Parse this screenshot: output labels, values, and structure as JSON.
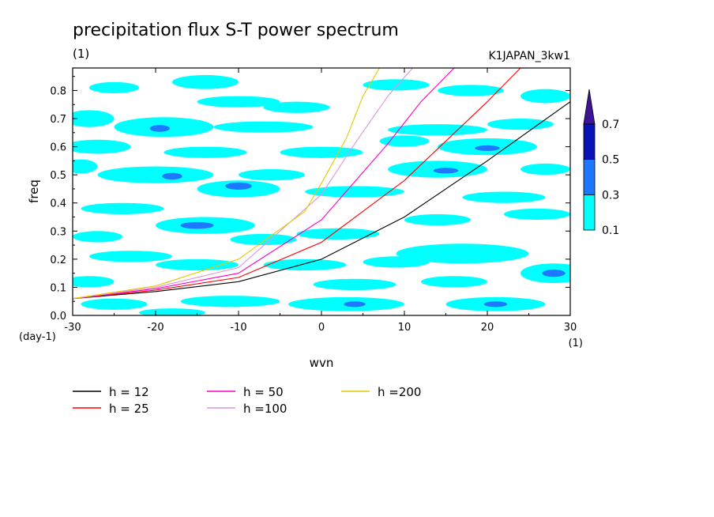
{
  "chart_data": {
    "type": "heatmap",
    "title": "precipitation flux S-T power spectrum",
    "subtitle": "(1)",
    "case_label": "K1JAPAN_3kw1",
    "xlabel": "wvn",
    "ylabel": "freq",
    "x_unit": "(1)",
    "y_unit": "(day-1)",
    "xlim": [
      -30,
      30
    ],
    "ylim": [
      0,
      0.88
    ],
    "x_ticks": [
      -30,
      -20,
      -10,
      0,
      10,
      20,
      30
    ],
    "y_ticks": [
      0.0,
      0.1,
      0.2,
      0.3,
      0.4,
      0.5,
      0.6,
      0.7,
      0.8
    ],
    "x_tick_labels": [
      "-30",
      "-20",
      "-10",
      "0",
      "10",
      "20",
      "30"
    ],
    "y_tick_labels": [
      "0.0",
      "0.1",
      "0.2",
      "0.3",
      "0.4",
      "0.5",
      "0.6",
      "0.7",
      "0.8"
    ],
    "grid": false,
    "colorbar": {
      "levels": [
        0.1,
        0.3,
        0.5,
        0.7
      ],
      "labels": [
        "0.1",
        "0.3",
        "0.5",
        "0.7"
      ],
      "colors": [
        "#00ffff",
        "#1e78ff",
        "#0a14b4",
        "#3c1496"
      ],
      "position": "right"
    },
    "contour_blobs": [
      {
        "x": -25,
        "y": 0.81,
        "rx": 3,
        "ry": 0.02,
        "level": 1
      },
      {
        "x": -14,
        "y": 0.83,
        "rx": 4,
        "ry": 0.025,
        "level": 1
      },
      {
        "x": -10,
        "y": 0.76,
        "rx": 5,
        "ry": 0.02,
        "level": 1
      },
      {
        "x": -3,
        "y": 0.74,
        "rx": 4,
        "ry": 0.02,
        "level": 1
      },
      {
        "x": 9,
        "y": 0.82,
        "rx": 4,
        "ry": 0.02,
        "level": 1
      },
      {
        "x": 18,
        "y": 0.8,
        "rx": 4,
        "ry": 0.02,
        "level": 1
      },
      {
        "x": 27,
        "y": 0.78,
        "rx": 3,
        "ry": 0.025,
        "level": 1
      },
      {
        "x": -28,
        "y": 0.7,
        "rx": 3,
        "ry": 0.03,
        "level": 1
      },
      {
        "x": -19,
        "y": 0.67,
        "rx": 6,
        "ry": 0.035,
        "level": 1
      },
      {
        "x": -19.5,
        "y": 0.665,
        "rx": 1.2,
        "ry": 0.012,
        "level": 2
      },
      {
        "x": -7,
        "y": 0.67,
        "rx": 6,
        "ry": 0.02,
        "level": 1
      },
      {
        "x": 14,
        "y": 0.66,
        "rx": 6,
        "ry": 0.02,
        "level": 1
      },
      {
        "x": 24,
        "y": 0.68,
        "rx": 4,
        "ry": 0.02,
        "level": 1
      },
      {
        "x": -27,
        "y": 0.6,
        "rx": 4,
        "ry": 0.025,
        "level": 1
      },
      {
        "x": -14,
        "y": 0.58,
        "rx": 5,
        "ry": 0.02,
        "level": 1
      },
      {
        "x": 0,
        "y": 0.58,
        "rx": 5,
        "ry": 0.02,
        "level": 1
      },
      {
        "x": 10,
        "y": 0.62,
        "rx": 3,
        "ry": 0.02,
        "level": 1
      },
      {
        "x": 20,
        "y": 0.6,
        "rx": 6,
        "ry": 0.03,
        "level": 1
      },
      {
        "x": 20,
        "y": 0.595,
        "rx": 1.5,
        "ry": 0.01,
        "level": 2
      },
      {
        "x": -29,
        "y": 0.53,
        "rx": 2,
        "ry": 0.025,
        "level": 1
      },
      {
        "x": -20,
        "y": 0.5,
        "rx": 7,
        "ry": 0.03,
        "level": 1
      },
      {
        "x": -18,
        "y": 0.495,
        "rx": 1.2,
        "ry": 0.012,
        "level": 2
      },
      {
        "x": -6,
        "y": 0.5,
        "rx": 4,
        "ry": 0.02,
        "level": 1
      },
      {
        "x": 14,
        "y": 0.52,
        "rx": 6,
        "ry": 0.03,
        "level": 1
      },
      {
        "x": 15,
        "y": 0.515,
        "rx": 1.5,
        "ry": 0.01,
        "level": 2
      },
      {
        "x": 27,
        "y": 0.52,
        "rx": 3,
        "ry": 0.02,
        "level": 1
      },
      {
        "x": -10,
        "y": 0.45,
        "rx": 5,
        "ry": 0.03,
        "level": 1
      },
      {
        "x": -10,
        "y": 0.46,
        "rx": 1.6,
        "ry": 0.013,
        "level": 2
      },
      {
        "x": 4,
        "y": 0.44,
        "rx": 6,
        "ry": 0.02,
        "level": 1
      },
      {
        "x": 22,
        "y": 0.42,
        "rx": 5,
        "ry": 0.02,
        "level": 1
      },
      {
        "x": -24,
        "y": 0.38,
        "rx": 5,
        "ry": 0.02,
        "level": 1
      },
      {
        "x": -14,
        "y": 0.32,
        "rx": 6,
        "ry": 0.03,
        "level": 1
      },
      {
        "x": -15,
        "y": 0.32,
        "rx": 2.0,
        "ry": 0.012,
        "level": 2
      },
      {
        "x": 14,
        "y": 0.34,
        "rx": 4,
        "ry": 0.02,
        "level": 1
      },
      {
        "x": 26,
        "y": 0.36,
        "rx": 4,
        "ry": 0.02,
        "level": 1
      },
      {
        "x": -27,
        "y": 0.28,
        "rx": 3,
        "ry": 0.02,
        "level": 1
      },
      {
        "x": -7,
        "y": 0.27,
        "rx": 4,
        "ry": 0.02,
        "level": 1
      },
      {
        "x": 2,
        "y": 0.29,
        "rx": 5,
        "ry": 0.02,
        "level": 1
      },
      {
        "x": 17,
        "y": 0.22,
        "rx": 8,
        "ry": 0.035,
        "level": 1
      },
      {
        "x": -23,
        "y": 0.21,
        "rx": 5,
        "ry": 0.02,
        "level": 1
      },
      {
        "x": -15,
        "y": 0.18,
        "rx": 5,
        "ry": 0.02,
        "level": 1
      },
      {
        "x": -2,
        "y": 0.18,
        "rx": 5,
        "ry": 0.02,
        "level": 1
      },
      {
        "x": 9,
        "y": 0.19,
        "rx": 4,
        "ry": 0.02,
        "level": 1
      },
      {
        "x": -28,
        "y": 0.12,
        "rx": 3,
        "ry": 0.02,
        "level": 1
      },
      {
        "x": 4,
        "y": 0.11,
        "rx": 5,
        "ry": 0.02,
        "level": 1
      },
      {
        "x": 28,
        "y": 0.15,
        "rx": 4,
        "ry": 0.035,
        "level": 1
      },
      {
        "x": 28,
        "y": 0.15,
        "rx": 1.4,
        "ry": 0.013,
        "level": 2
      },
      {
        "x": 16,
        "y": 0.12,
        "rx": 4,
        "ry": 0.02,
        "level": 1
      },
      {
        "x": -11,
        "y": 0.05,
        "rx": 6,
        "ry": 0.02,
        "level": 1
      },
      {
        "x": 3,
        "y": 0.04,
        "rx": 7,
        "ry": 0.025,
        "level": 1
      },
      {
        "x": 4,
        "y": 0.04,
        "rx": 1.3,
        "ry": 0.01,
        "level": 2
      },
      {
        "x": 21,
        "y": 0.04,
        "rx": 6,
        "ry": 0.025,
        "level": 1
      },
      {
        "x": 21,
        "y": 0.04,
        "rx": 1.4,
        "ry": 0.01,
        "level": 2
      },
      {
        "x": -25,
        "y": 0.04,
        "rx": 4,
        "ry": 0.02,
        "level": 1
      },
      {
        "x": -18,
        "y": 0.01,
        "rx": 4,
        "ry": 0.015,
        "level": 1
      }
    ],
    "series": [
      {
        "name": "h = 12",
        "color": "#000000",
        "x": [
          -30,
          -20,
          -10,
          0,
          10,
          20,
          30
        ],
        "y": [
          0.06,
          0.085,
          0.12,
          0.2,
          0.35,
          0.55,
          0.76
        ]
      },
      {
        "name": "h = 25",
        "color": "#ff0000",
        "x": [
          -30,
          -20,
          -10,
          0,
          10,
          20,
          24
        ],
        "y": [
          0.06,
          0.09,
          0.135,
          0.26,
          0.48,
          0.76,
          0.88
        ]
      },
      {
        "name": "h = 50",
        "color": "#ff00c8",
        "x": [
          -30,
          -20,
          -10,
          0,
          8,
          12,
          16
        ],
        "y": [
          0.06,
          0.095,
          0.15,
          0.34,
          0.61,
          0.76,
          0.88
        ]
      },
      {
        "name": "h =100",
        "color": "#dc96dc",
        "x": [
          -30,
          -20,
          -10,
          0,
          4,
          8,
          11
        ],
        "y": [
          0.06,
          0.1,
          0.17,
          0.43,
          0.61,
          0.78,
          0.88
        ]
      },
      {
        "name": "h =200",
        "color": "#e6c800",
        "x": [
          -30,
          -20,
          -10,
          -2,
          0,
          3,
          5,
          7
        ],
        "y": [
          0.06,
          0.105,
          0.2,
          0.37,
          0.47,
          0.63,
          0.78,
          0.88
        ]
      }
    ]
  }
}
